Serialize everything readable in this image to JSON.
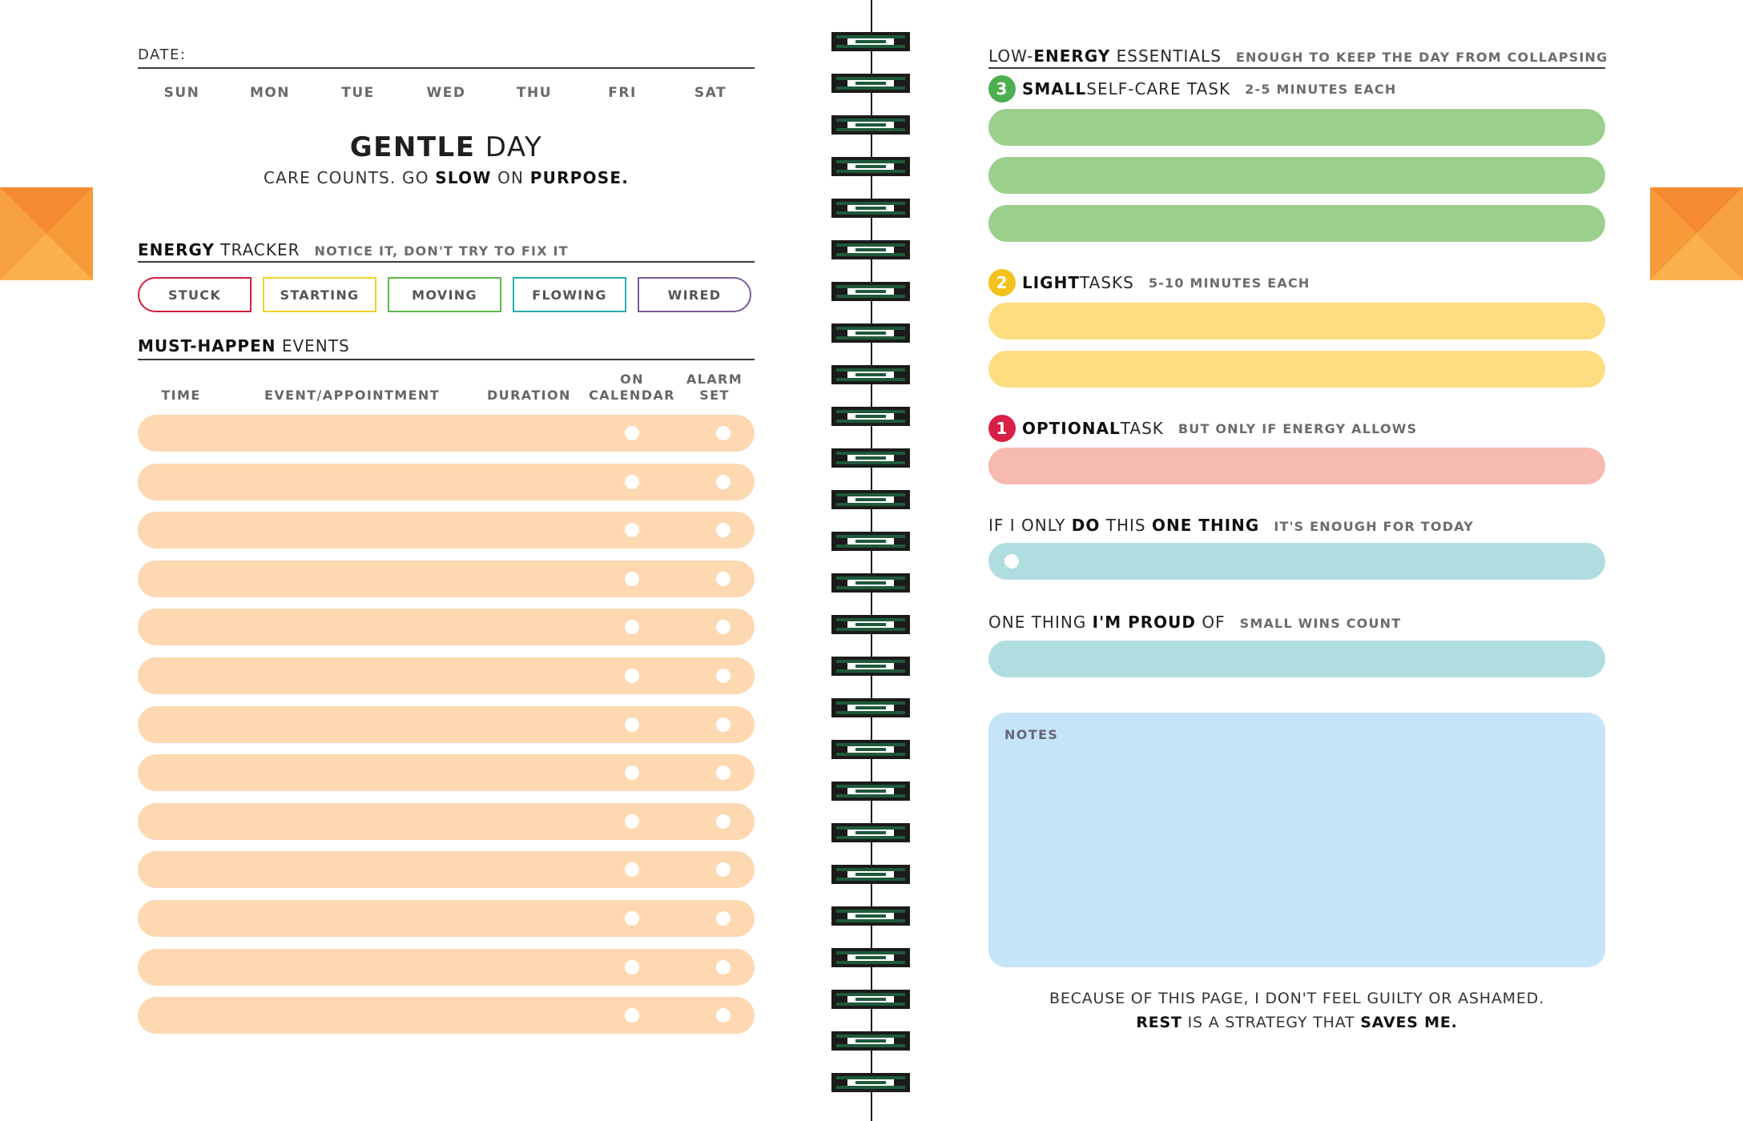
{
  "left_page": {
    "date_label": "DATE:",
    "days": [
      "SUN",
      "MON",
      "TUE",
      "WED",
      "THU",
      "FRI",
      "SAT"
    ],
    "title": {
      "bold": "GENTLE",
      "regular": " DAY"
    },
    "tagline": {
      "p1": "CARE COUNTS. GO ",
      "b1": "SLOW",
      "p2": " ON ",
      "b2": "PURPOSE."
    },
    "energy": {
      "title_bold": "ENERGY",
      "title_regular": " TRACKER",
      "subtitle": "NOTICE IT, DON'T TRY TO FIX IT",
      "options": [
        {
          "label": "STUCK",
          "color": "#d0203a"
        },
        {
          "label": "STARTING",
          "color": "#f0d02a"
        },
        {
          "label": "MOVING",
          "color": "#5cb84a"
        },
        {
          "label": "FLOWING",
          "color": "#2aaab0"
        },
        {
          "label": "WIRED",
          "color": "#7a5b9a"
        }
      ]
    },
    "events": {
      "title_bold": "MUST-HAPPEN",
      "title_regular": " EVENTS",
      "columns": {
        "time": "TIME",
        "event": "EVENT/APPOINTMENT",
        "duration": "DURATION",
        "on_calendar_1": "ON",
        "on_calendar_2": "CALENDAR",
        "alarm_1": "ALARM",
        "alarm_2": "SET"
      },
      "row_count": 13,
      "row_color": "#fdd8b1"
    }
  },
  "right_page": {
    "essentials": {
      "title_p1": "LOW-",
      "title_bold": "ENERGY",
      "title_p2": " ESSENTIALS",
      "subtitle": "ENOUGH TO KEEP THE DAY FROM COLLAPSING"
    },
    "self_care": {
      "number": "3",
      "badge_color": "#4caf50",
      "title_bold": "SMALL",
      "title_regular": " SELF-CARE TASK",
      "subtitle": "2-5 MINUTES EACH",
      "bar_color": "#9bd08c"
    },
    "light": {
      "number": "2",
      "badge_color": "#f3c21c",
      "title_bold": "LIGHT",
      "title_regular": " TASKS",
      "subtitle": "5-10 MINUTES EACH",
      "bar_color": "#fedc80"
    },
    "optional": {
      "number": "1",
      "badge_color": "#d81f45",
      "title_bold": "OPTIONAL",
      "title_regular": " TASK",
      "subtitle": "BUT ONLY IF ENERGY ALLOWS",
      "bar_color": "#f6bab0"
    },
    "one_thing": {
      "p1": "IF I ONLY ",
      "b1": "DO",
      "p2": " THIS ",
      "b2": "ONE THING",
      "subtitle": "IT'S ENOUGH FOR TODAY",
      "bar_color": "#b0dee0"
    },
    "proud": {
      "p1": "ONE THING ",
      "b1": "I'M PROUD",
      "p2": " OF",
      "subtitle": "SMALL WINS COUNT",
      "bar_color": "#b0dee0"
    },
    "notes": {
      "label": "NOTES"
    },
    "footer": {
      "line1": "BECAUSE OF THIS PAGE, I DON'T FEEL GUILTY OR ASHAMED.",
      "b1": "REST",
      "p2": " IS A STRATEGY THAT ",
      "b2": "SAVES ME."
    }
  },
  "colors": {
    "tab_orange": "#f79a3a",
    "spiral_green": "#1f5a3a"
  }
}
